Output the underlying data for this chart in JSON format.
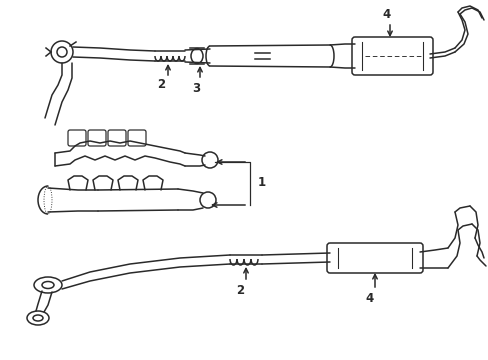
{
  "bg_color": "#ffffff",
  "line_color": "#2a2a2a",
  "line_width": 1.1,
  "label_color": "#000000",
  "label_fontsize": 8.5,
  "fig_w": 4.89,
  "fig_h": 3.6,
  "dpi": 100
}
